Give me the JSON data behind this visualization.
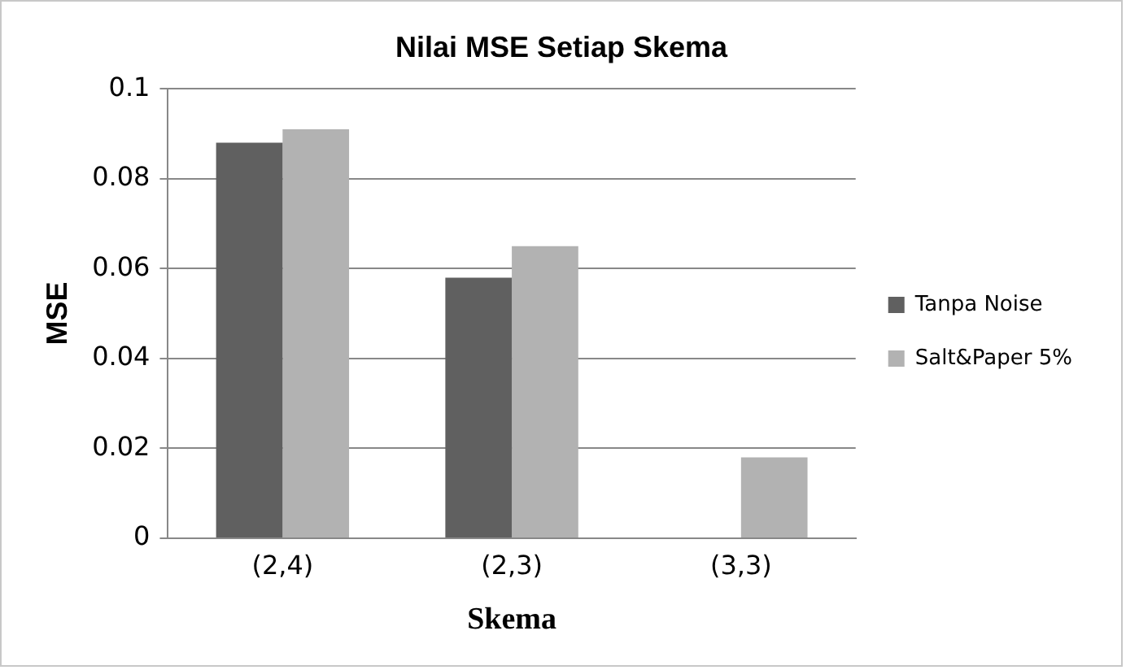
{
  "chart_data": {
    "type": "bar",
    "title": "Nilai MSE Setiap Skema",
    "xlabel": "Skema",
    "ylabel": "MSE",
    "categories": [
      "(2,4)",
      "(2,3)",
      "(3,3)"
    ],
    "series": [
      {
        "name": "Tanpa Noise",
        "color": "#606060",
        "values": [
          0.088,
          0.058,
          0
        ]
      },
      {
        "name": "Salt&Paper 5%",
        "color": "#b2b2b2",
        "values": [
          0.091,
          0.065,
          0.018
        ]
      }
    ],
    "ylim": [
      0,
      0.1
    ],
    "yticks": [
      0,
      0.02,
      0.04,
      0.06,
      0.08,
      0.1
    ],
    "grid": "y",
    "legend": "right"
  }
}
